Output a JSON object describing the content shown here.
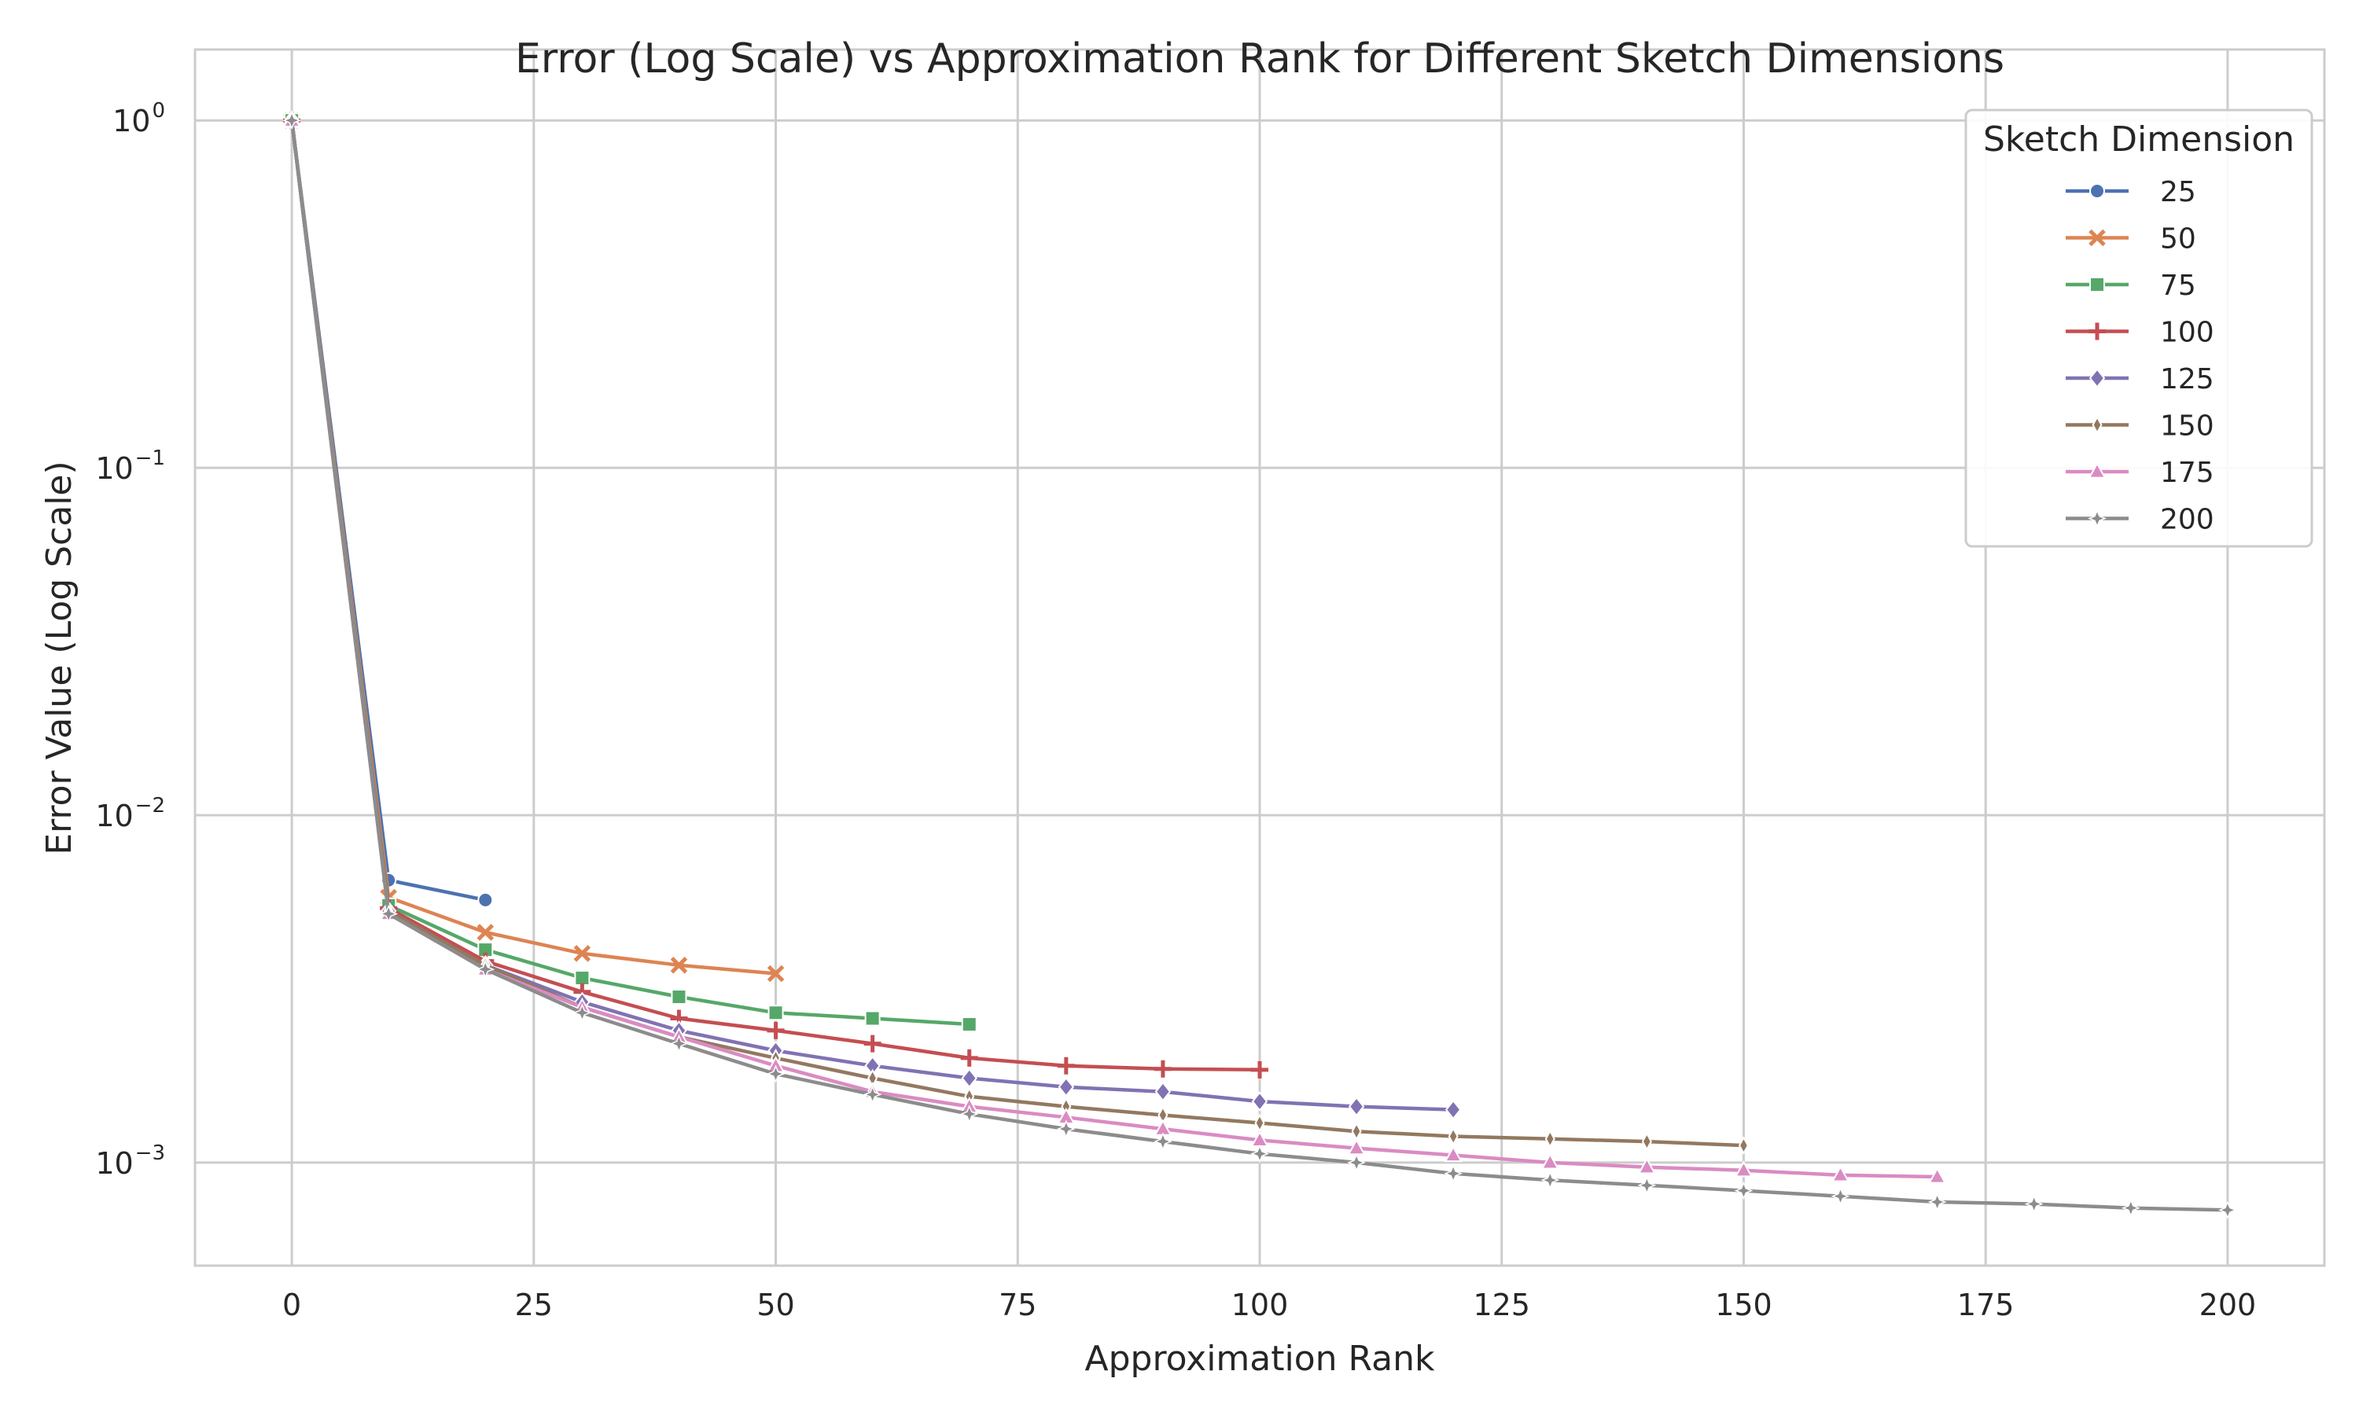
{
  "chart_data": {
    "type": "line",
    "title": "Error (Log Scale) vs Approximation Rank for Different Sketch Dimensions",
    "xlabel": "Approximation Rank",
    "ylabel": "Error Value (Log Scale)",
    "xlim": [
      -10,
      210
    ],
    "ylim": [
      0.000505,
      1.6
    ],
    "yscale": "log",
    "grid": true,
    "x_ticks": [
      0,
      25,
      50,
      75,
      100,
      125,
      150,
      175,
      200
    ],
    "x_tick_labels": [
      "0",
      "25",
      "50",
      "75",
      "100",
      "125",
      "150",
      "175",
      "200"
    ],
    "y_ticks": [
      0.001,
      0.01,
      0.1,
      1
    ],
    "y_tick_labels": [
      {
        "base": "10",
        "exp": "−3"
      },
      {
        "base": "10",
        "exp": "−2"
      },
      {
        "base": "10",
        "exp": "−1"
      },
      {
        "base": "10",
        "exp": "0"
      }
    ],
    "legend": {
      "title": "Sketch Dimension",
      "position": "top-right"
    },
    "series": [
      {
        "name": "25",
        "color": "#4c72b0",
        "marker": "circle",
        "x": [
          0,
          10,
          20
        ],
        "y": [
          1.0,
          0.0065,
          0.0057
        ]
      },
      {
        "name": "50",
        "color": "#dd8452",
        "marker": "x",
        "x": [
          0,
          10,
          20,
          30,
          40,
          50
        ],
        "y": [
          1.0,
          0.0058,
          0.0046,
          0.004,
          0.0037,
          0.0035
        ]
      },
      {
        "name": "75",
        "color": "#55a868",
        "marker": "square",
        "x": [
          0,
          10,
          20,
          30,
          40,
          50,
          60,
          70
        ],
        "y": [
          1.0,
          0.0055,
          0.0041,
          0.0034,
          0.003,
          0.0027,
          0.0026,
          0.0025
        ]
      },
      {
        "name": "100",
        "color": "#c44e52",
        "marker": "plus",
        "x": [
          0,
          10,
          20,
          30,
          40,
          50,
          60,
          70,
          80,
          90,
          100
        ],
        "y": [
          1.0,
          0.0054,
          0.0038,
          0.0031,
          0.0026,
          0.0024,
          0.0022,
          0.002,
          0.0019,
          0.00186,
          0.00185
        ]
      },
      {
        "name": "125",
        "color": "#8172b3",
        "marker": "diamond",
        "x": [
          0,
          10,
          20,
          30,
          40,
          50,
          60,
          70,
          80,
          90,
          100,
          110,
          120
        ],
        "y": [
          1.0,
          0.0053,
          0.0037,
          0.0029,
          0.0024,
          0.0021,
          0.0019,
          0.00175,
          0.00165,
          0.0016,
          0.0015,
          0.00145,
          0.00142
        ]
      },
      {
        "name": "150",
        "color": "#937860",
        "marker": "thin-diamond",
        "x": [
          0,
          10,
          20,
          30,
          40,
          50,
          60,
          70,
          80,
          90,
          100,
          110,
          120,
          130,
          140,
          150
        ],
        "y": [
          1.0,
          0.0053,
          0.0037,
          0.0028,
          0.0023,
          0.002,
          0.00175,
          0.00155,
          0.00145,
          0.00137,
          0.0013,
          0.00123,
          0.00119,
          0.00117,
          0.00115,
          0.00112
        ]
      },
      {
        "name": "175",
        "color": "#da8bc3",
        "marker": "triangle",
        "x": [
          0,
          10,
          20,
          30,
          40,
          50,
          60,
          70,
          80,
          90,
          100,
          110,
          120,
          130,
          140,
          150,
          160,
          170
        ],
        "y": [
          1.0,
          0.0052,
          0.0036,
          0.0028,
          0.0023,
          0.0019,
          0.0016,
          0.00145,
          0.00135,
          0.00125,
          0.00116,
          0.0011,
          0.00105,
          0.001,
          0.00097,
          0.00095,
          0.00092,
          0.00091
        ]
      },
      {
        "name": "200",
        "color": "#8c8c8c",
        "marker": "star",
        "x": [
          0,
          10,
          20,
          30,
          40,
          50,
          60,
          70,
          80,
          90,
          100,
          110,
          120,
          130,
          140,
          150,
          160,
          170,
          180,
          190,
          200
        ],
        "y": [
          1.0,
          0.0052,
          0.0036,
          0.0027,
          0.0022,
          0.0018,
          0.00157,
          0.00138,
          0.00125,
          0.00115,
          0.00106,
          0.001,
          0.00093,
          0.00089,
          0.00086,
          0.00083,
          0.0008,
          0.00077,
          0.00076,
          0.00074,
          0.00073
        ]
      }
    ]
  }
}
